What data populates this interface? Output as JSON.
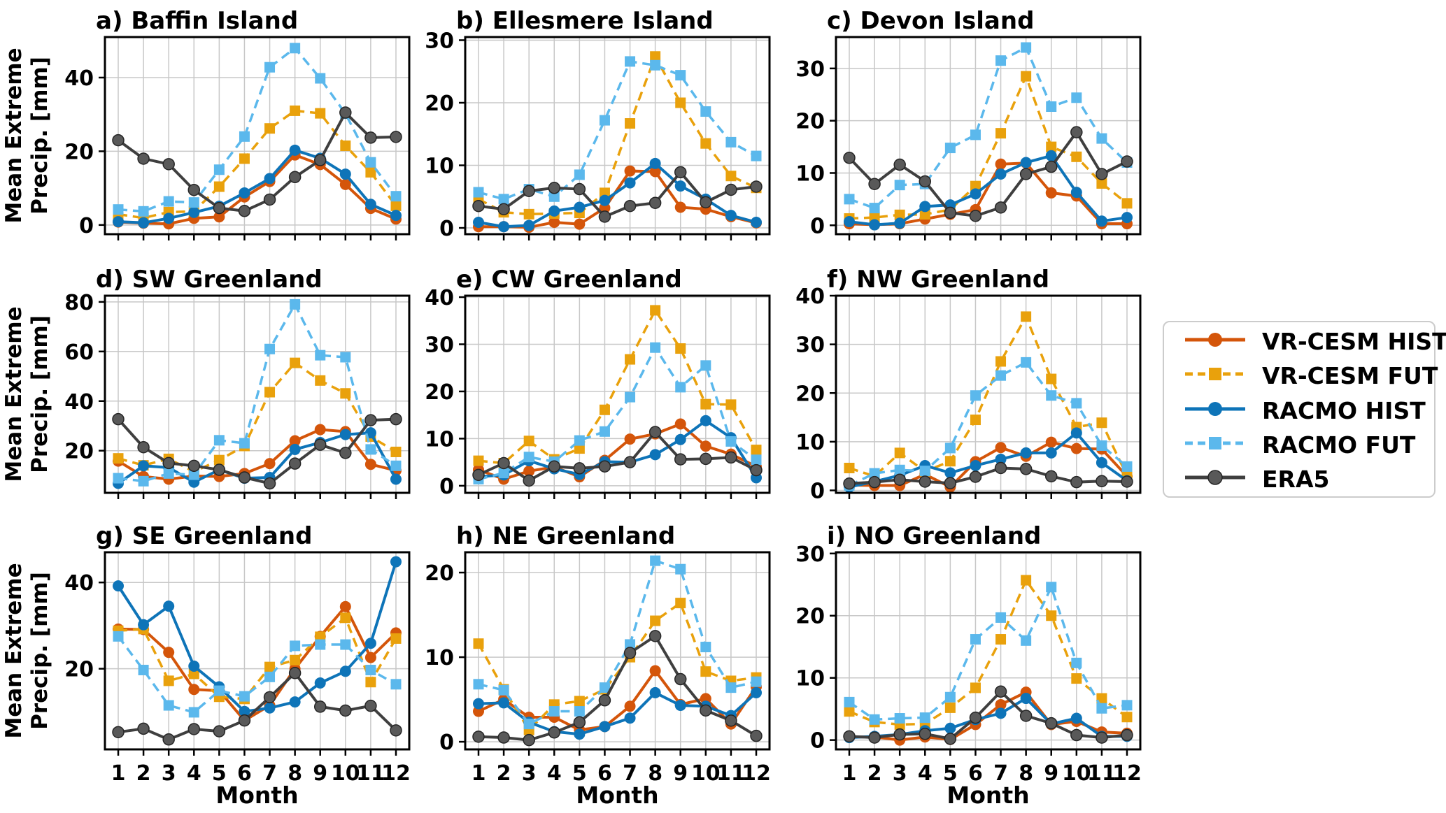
{
  "figure": {
    "ylabel_line1": "Mean Extreme",
    "ylabel_line2": "Precip. [mm]",
    "xlabel": "Month",
    "background": "#ffffff",
    "grid_color": "#c8c8c8"
  },
  "legend": {
    "items": [
      {
        "label": "VR-CESM HIST",
        "line_color": "#D4550A",
        "dash": false,
        "marker": "circle"
      },
      {
        "label": "VR-CESM FUT",
        "line_color": "#E9A10C",
        "dash": true,
        "marker": "square"
      },
      {
        "label": "RACMO HIST",
        "line_color": "#0E74B8",
        "dash": false,
        "marker": "circle"
      },
      {
        "label": "RACMO FUT",
        "line_color": "#5BB8EC",
        "dash": true,
        "marker": "square"
      },
      {
        "label": "ERA5",
        "line_color": "#3F3F3F",
        "marker_fill": "#595959",
        "marker_edge": "#262626",
        "dash": false,
        "marker": "circle"
      }
    ]
  },
  "chart_data": [
    {
      "id": "a",
      "title": "a) Baffin Island",
      "type": "line",
      "x": [
        1,
        2,
        3,
        4,
        5,
        6,
        7,
        8,
        9,
        10,
        11,
        12
      ],
      "ylim": [
        -2.5,
        51
      ],
      "yticks": [
        0,
        20,
        40
      ],
      "show_month_labels": false,
      "series": [
        {
          "name": "VR-CESM HIST",
          "values": [
            0.8,
            0.5,
            0.3,
            1.8,
            2.2,
            7.6,
            11.8,
            19.0,
            16.4,
            11.0,
            4.5,
            1.6
          ]
        },
        {
          "name": "VR-CESM FUT",
          "values": [
            2.9,
            1.9,
            3.5,
            3.7,
            10.4,
            18.0,
            26.2,
            31.0,
            30.3,
            21.5,
            14.3,
            5.2
          ]
        },
        {
          "name": "RACMO HIST",
          "values": [
            0.9,
            0.6,
            1.8,
            3.4,
            5.1,
            8.7,
            12.6,
            20.3,
            18.1,
            13.8,
            5.6,
            2.6
          ]
        },
        {
          "name": "RACMO FUT",
          "values": [
            4.2,
            3.7,
            6.4,
            6.1,
            15.0,
            24.0,
            42.8,
            48.0,
            39.8,
            30.2,
            17.0,
            7.8
          ]
        },
        {
          "name": "ERA5",
          "values": [
            23.0,
            18.0,
            16.5,
            9.5,
            4.6,
            3.8,
            6.9,
            13.0,
            17.6,
            30.5,
            23.7,
            23.9
          ]
        }
      ]
    },
    {
      "id": "b",
      "title": "b) Ellesmere Island",
      "type": "line",
      "x": [
        1,
        2,
        3,
        4,
        5,
        6,
        7,
        8,
        9,
        10,
        11,
        12
      ],
      "ylim": [
        -1,
        30.5
      ],
      "yticks": [
        0,
        10,
        20,
        30
      ],
      "show_month_labels": false,
      "series": [
        {
          "name": "VR-CESM HIST",
          "values": [
            0.2,
            0.2,
            0.1,
            0.9,
            0.6,
            3.2,
            9.1,
            9.0,
            3.3,
            3.0,
            1.8,
            0.8
          ]
        },
        {
          "name": "VR-CESM FUT",
          "values": [
            4.6,
            2.5,
            2.2,
            2.3,
            2.4,
            5.6,
            16.7,
            27.4,
            20.0,
            13.5,
            8.3,
            6.4
          ]
        },
        {
          "name": "RACMO HIST",
          "values": [
            0.9,
            0.2,
            0.4,
            2.7,
            3.3,
            4.4,
            7.2,
            10.3,
            6.7,
            4.6,
            2.0,
            0.9
          ]
        },
        {
          "name": "RACMO FUT",
          "values": [
            5.7,
            4.6,
            6.2,
            5.0,
            8.5,
            17.2,
            26.6,
            26.0,
            24.4,
            18.6,
            13.7,
            11.5
          ]
        },
        {
          "name": "ERA5",
          "values": [
            3.5,
            3.0,
            5.9,
            6.4,
            6.2,
            1.8,
            3.5,
            4.0,
            8.9,
            4.1,
            6.1,
            6.6
          ]
        }
      ]
    },
    {
      "id": "c",
      "title": "c) Devon Island",
      "type": "line",
      "x": [
        1,
        2,
        3,
        4,
        5,
        6,
        7,
        8,
        9,
        10,
        11,
        12
      ],
      "ylim": [
        -1.7,
        36
      ],
      "yticks": [
        0,
        10,
        20,
        30
      ],
      "show_month_labels": false,
      "series": [
        {
          "name": "VR-CESM HIST",
          "values": [
            0.3,
            0.1,
            0.3,
            1.2,
            2.1,
            3.0,
            11.7,
            11.9,
            6.2,
            5.6,
            0.3,
            0.3
          ]
        },
        {
          "name": "VR-CESM FUT",
          "values": [
            1.3,
            1.5,
            2.0,
            2.1,
            3.0,
            7.5,
            17.6,
            28.5,
            15.0,
            13.1,
            8.0,
            4.2
          ]
        },
        {
          "name": "RACMO HIST",
          "values": [
            0.7,
            0.1,
            0.4,
            3.6,
            3.9,
            6.0,
            9.8,
            12.0,
            13.3,
            6.3,
            0.8,
            1.5
          ]
        },
        {
          "name": "RACMO FUT",
          "values": [
            5.0,
            3.3,
            7.7,
            7.9,
            14.8,
            17.3,
            31.5,
            34.0,
            22.7,
            24.4,
            16.6,
            12.0
          ]
        },
        {
          "name": "ERA5",
          "values": [
            12.9,
            7.9,
            11.6,
            8.4,
            2.4,
            1.8,
            3.4,
            9.8,
            11.2,
            17.8,
            9.8,
            12.2
          ]
        }
      ]
    },
    {
      "id": "d",
      "title": "d) SW Greenland",
      "type": "line",
      "x": [
        1,
        2,
        3,
        4,
        5,
        6,
        7,
        8,
        9,
        10,
        11,
        12
      ],
      "ylim": [
        3,
        82.5
      ],
      "yticks": [
        20,
        40,
        60,
        80
      ],
      "show_month_labels": false,
      "series": [
        {
          "name": "VR-CESM HIST",
          "values": [
            15.8,
            9.6,
            8.5,
            9.8,
            9.6,
            10.8,
            14.8,
            24.0,
            28.5,
            27.7,
            14.5,
            12.0
          ]
        },
        {
          "name": "VR-CESM FUT",
          "values": [
            16.9,
            14.1,
            16.7,
            11.5,
            16.2,
            21.9,
            43.6,
            55.4,
            48.3,
            43.1,
            25.7,
            19.5
          ]
        },
        {
          "name": "RACMO HIST",
          "values": [
            6.8,
            13.9,
            13.2,
            7.3,
            12.3,
            8.9,
            9.2,
            20.5,
            23.3,
            26.5,
            27.2,
            8.5
          ]
        },
        {
          "name": "RACMO FUT",
          "values": [
            8.9,
            7.7,
            10.8,
            10.3,
            24.2,
            23.0,
            61.0,
            79.0,
            58.5,
            57.7,
            20.5,
            13.9
          ]
        },
        {
          "name": "ERA5",
          "values": [
            32.7,
            21.4,
            15.0,
            13.9,
            12.3,
            9.2,
            6.8,
            14.8,
            22.4,
            19.1,
            32.3,
            32.7
          ]
        }
      ]
    },
    {
      "id": "e",
      "title": "e) CW Greenland",
      "type": "line",
      "x": [
        1,
        2,
        3,
        4,
        5,
        6,
        7,
        8,
        9,
        10,
        11,
        12
      ],
      "ylim": [
        -1.5,
        40.3
      ],
      "yticks": [
        0,
        10,
        20,
        30,
        40
      ],
      "show_month_labels": false,
      "series": [
        {
          "name": "VR-CESM HIST",
          "values": [
            3.4,
            1.4,
            3.1,
            4.0,
            1.9,
            5.4,
            9.9,
            11.0,
            13.1,
            8.4,
            6.7,
            4.1
          ]
        },
        {
          "name": "VR-CESM FUT",
          "values": [
            5.3,
            4.8,
            9.5,
            5.6,
            7.9,
            16.1,
            26.8,
            37.2,
            29.1,
            17.3,
            17.2,
            7.6
          ]
        },
        {
          "name": "RACMO HIST",
          "values": [
            1.9,
            2.3,
            5.3,
            3.6,
            2.4,
            5.1,
            5.0,
            6.6,
            9.8,
            13.8,
            10.2,
            1.7
          ]
        },
        {
          "name": "RACMO FUT",
          "values": [
            1.4,
            2.7,
            6.1,
            5.1,
            9.6,
            11.5,
            18.8,
            29.3,
            20.9,
            25.5,
            9.4,
            5.5
          ]
        },
        {
          "name": "ERA5",
          "values": [
            2.3,
            4.8,
            1.1,
            4.1,
            3.7,
            4.1,
            5.0,
            11.4,
            5.6,
            5.7,
            6.0,
            3.3
          ]
        }
      ]
    },
    {
      "id": "f",
      "title": "f) NW Greenland",
      "type": "line",
      "x": [
        1,
        2,
        3,
        4,
        5,
        6,
        7,
        8,
        9,
        10,
        11,
        12
      ],
      "ylim": [
        -0.5,
        40
      ],
      "yticks": [
        0,
        10,
        20,
        30,
        40
      ],
      "show_month_labels": false,
      "series": [
        {
          "name": "VR-CESM HIST",
          "values": [
            1.1,
            1.0,
            1.0,
            3.3,
            0.7,
            5.9,
            8.8,
            7.0,
            9.9,
            8.6,
            8.5,
            2.9
          ]
        },
        {
          "name": "VR-CESM FUT",
          "values": [
            4.6,
            2.9,
            7.7,
            3.9,
            6.0,
            14.5,
            26.5,
            35.7,
            22.9,
            13.0,
            13.9,
            3.0
          ]
        },
        {
          "name": "RACMO HIST",
          "values": [
            0.7,
            1.8,
            3.1,
            5.1,
            3.6,
            5.1,
            6.4,
            7.7,
            7.7,
            11.8,
            5.7,
            2.0
          ]
        },
        {
          "name": "RACMO FUT",
          "values": [
            1.0,
            3.5,
            4.2,
            4.0,
            8.7,
            19.5,
            23.6,
            26.3,
            19.5,
            17.9,
            9.2,
            4.9
          ]
        },
        {
          "name": "ERA5",
          "values": [
            1.4,
            1.7,
            2.2,
            1.8,
            1.5,
            2.8,
            4.6,
            4.4,
            2.9,
            1.7,
            1.9,
            1.8
          ]
        }
      ]
    },
    {
      "id": "g",
      "title": "g) SE Greenland",
      "type": "line",
      "x": [
        1,
        2,
        3,
        4,
        5,
        6,
        7,
        8,
        9,
        10,
        11,
        12
      ],
      "ylim": [
        1.3,
        47
      ],
      "yticks": [
        20,
        40
      ],
      "show_month_labels": true,
      "series": [
        {
          "name": "VR-CESM HIST",
          "values": [
            29.2,
            29.1,
            23.8,
            15.2,
            14.9,
            8.0,
            11.5,
            20.0,
            27.5,
            34.4,
            22.6,
            28.3
          ]
        },
        {
          "name": "VR-CESM FUT",
          "values": [
            28.8,
            29.2,
            17.2,
            18.8,
            13.5,
            13.0,
            20.4,
            22.0,
            27.4,
            31.8,
            16.9,
            27.0
          ]
        },
        {
          "name": "RACMO HIST",
          "values": [
            39.2,
            30.2,
            34.5,
            20.6,
            15.8,
            10.1,
            10.9,
            12.3,
            16.7,
            19.4,
            25.9,
            44.8
          ]
        },
        {
          "name": "RACMO FUT",
          "values": [
            27.5,
            19.7,
            11.5,
            9.9,
            14.9,
            13.6,
            18.1,
            25.3,
            25.6,
            25.6,
            19.7,
            16.4
          ]
        },
        {
          "name": "ERA5",
          "values": [
            5.3,
            6.1,
            3.6,
            6.0,
            5.5,
            8.0,
            13.4,
            19.0,
            11.2,
            10.3,
            11.4,
            5.7
          ]
        }
      ]
    },
    {
      "id": "h",
      "title": "h) NE Greenland",
      "type": "line",
      "x": [
        1,
        2,
        3,
        4,
        5,
        6,
        7,
        8,
        9,
        10,
        11,
        12
      ],
      "ylim": [
        -0.9,
        22.4
      ],
      "yticks": [
        0,
        10,
        20
      ],
      "show_month_labels": true,
      "series": [
        {
          "name": "VR-CESM HIST",
          "values": [
            3.6,
            5.0,
            2.9,
            2.9,
            1.4,
            1.8,
            4.2,
            8.4,
            4.4,
            5.1,
            2.1,
            6.5
          ]
        },
        {
          "name": "VR-CESM FUT",
          "values": [
            11.6,
            6.2,
            1.4,
            4.4,
            4.8,
            6.2,
            10.0,
            14.3,
            16.4,
            8.3,
            7.2,
            7.6
          ]
        },
        {
          "name": "RACMO HIST",
          "values": [
            4.5,
            4.6,
            2.3,
            1.2,
            0.9,
            1.8,
            2.8,
            5.8,
            4.3,
            4.2,
            3.1,
            5.8
          ]
        },
        {
          "name": "RACMO FUT",
          "values": [
            6.8,
            6.1,
            2.1,
            3.6,
            3.6,
            6.4,
            11.5,
            21.4,
            20.4,
            11.2,
            6.4,
            7.1
          ]
        },
        {
          "name": "ERA5",
          "values": [
            0.6,
            0.5,
            0.2,
            1.1,
            2.3,
            4.9,
            10.5,
            12.5,
            7.4,
            3.7,
            2.5,
            0.7
          ]
        }
      ]
    },
    {
      "id": "i",
      "title": "i) NO Greenland",
      "type": "line",
      "x": [
        1,
        2,
        3,
        4,
        5,
        6,
        7,
        8,
        9,
        10,
        11,
        12
      ],
      "ylim": [
        -1.5,
        30.2
      ],
      "yticks": [
        0,
        10,
        20,
        30
      ],
      "show_month_labels": true,
      "series": [
        {
          "name": "VR-CESM HIST",
          "values": [
            0.5,
            0.5,
            0.0,
            0.5,
            0.1,
            2.5,
            5.7,
            7.7,
            2.5,
            3.0,
            1.3,
            1.1
          ]
        },
        {
          "name": "VR-CESM FUT",
          "values": [
            4.6,
            2.9,
            2.5,
            2.6,
            5.2,
            8.4,
            16.2,
            25.7,
            20.0,
            9.9,
            6.7,
            3.7
          ]
        },
        {
          "name": "RACMO HIST",
          "values": [
            0.4,
            0.6,
            0.9,
            1.5,
            1.9,
            3.3,
            4.3,
            6.7,
            2.6,
            3.5,
            0.6,
            0.6
          ]
        },
        {
          "name": "RACMO FUT",
          "values": [
            6.1,
            3.3,
            3.5,
            3.6,
            6.9,
            16.2,
            19.7,
            16.0,
            24.6,
            12.4,
            5.1,
            5.6
          ]
        },
        {
          "name": "ERA5",
          "values": [
            0.6,
            0.4,
            0.9,
            1.0,
            0.2,
            3.6,
            7.8,
            3.9,
            2.7,
            0.8,
            0.4,
            0.8
          ]
        }
      ]
    }
  ]
}
